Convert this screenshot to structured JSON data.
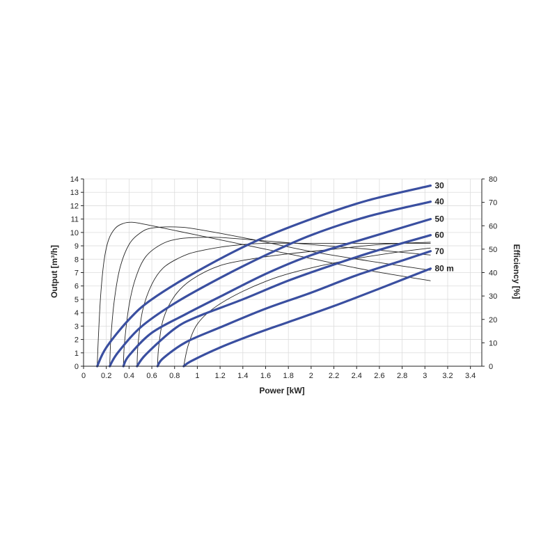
{
  "chart_data": {
    "type": "line",
    "xlabel": "Power [kW]",
    "ylabel": "Output [m³/h]",
    "y2label": "Efficiency [%]",
    "xlim": [
      0,
      3.5
    ],
    "ylim": [
      0,
      14
    ],
    "y2lim": [
      0,
      80
    ],
    "xticks": [
      "0",
      "0.2",
      "0.4",
      "0.6",
      "0.8",
      "1",
      "1.2",
      "1.4",
      "1.6",
      "1.8",
      "2",
      "2.2",
      "2.4",
      "2.6",
      "2.8",
      "3",
      "3.2",
      "3.4"
    ],
    "yticks": [
      "0",
      "1",
      "2",
      "3",
      "4",
      "5",
      "6",
      "7",
      "8",
      "9",
      "10",
      "11",
      "12",
      "13",
      "14"
    ],
    "y2ticks": [
      "0",
      "10",
      "20",
      "30",
      "40",
      "50",
      "60",
      "70",
      "80"
    ],
    "grid": true,
    "output_series": [
      {
        "label": "30",
        "x": [
          0.12,
          0.2,
          0.4,
          0.6,
          1.0,
          1.5,
          2.0,
          2.5,
          3.05
        ],
        "values": [
          0,
          1.4,
          3.5,
          5.0,
          7.1,
          9.3,
          11.0,
          12.4,
          13.5
        ]
      },
      {
        "label": "40",
        "x": [
          0.23,
          0.3,
          0.5,
          0.8,
          1.2,
          1.6,
          2.0,
          2.5,
          3.05
        ],
        "values": [
          0,
          1.0,
          2.9,
          4.7,
          6.6,
          8.3,
          9.8,
          11.2,
          12.3
        ]
      },
      {
        "label": "50",
        "x": [
          0.35,
          0.4,
          0.6,
          0.9,
          1.2,
          1.6,
          2.0,
          2.5,
          3.05
        ],
        "values": [
          0,
          0.8,
          2.5,
          3.9,
          5.2,
          6.9,
          8.3,
          9.6,
          11.0
        ]
      },
      {
        "label": "60",
        "x": [
          0.47,
          0.55,
          0.8,
          1.0,
          1.4,
          1.8,
          2.2,
          2.6,
          3.05
        ],
        "values": [
          0,
          0.9,
          2.8,
          3.7,
          5.0,
          6.4,
          7.6,
          8.7,
          9.8
        ]
      },
      {
        "label": "70",
        "x": [
          0.65,
          0.7,
          0.9,
          1.2,
          1.6,
          2.0,
          2.4,
          2.8,
          3.05
        ],
        "values": [
          0,
          0.6,
          1.8,
          2.9,
          4.3,
          5.5,
          6.8,
          7.9,
          8.6
        ]
      },
      {
        "label": "80 m",
        "x": [
          0.88,
          0.95,
          1.2,
          1.5,
          1.8,
          2.2,
          2.6,
          3.05
        ],
        "values": [
          0,
          0.4,
          1.4,
          2.4,
          3.3,
          4.5,
          5.8,
          7.3
        ]
      }
    ],
    "efficiency_series": [
      {
        "x": [
          0.12,
          0.13,
          0.15,
          0.18,
          0.22,
          0.28,
          0.35,
          0.42,
          0.5,
          0.7,
          1.0,
          1.5,
          2.0,
          2.5,
          3.05
        ],
        "values": [
          0,
          12,
          30,
          45,
          54,
          59,
          61,
          61.5,
          61,
          59,
          56,
          51,
          46,
          41,
          36.5
        ]
      },
      {
        "x": [
          0.23,
          0.24,
          0.27,
          0.32,
          0.4,
          0.5,
          0.6,
          0.8,
          1.0,
          1.5,
          2.0,
          2.5,
          3.05
        ],
        "values": [
          0,
          12,
          28,
          42,
          52,
          57,
          59,
          59.5,
          58.5,
          54,
          49,
          45,
          41
        ]
      },
      {
        "x": [
          0.35,
          0.36,
          0.4,
          0.46,
          0.55,
          0.7,
          0.85,
          1.0,
          1.2,
          1.6,
          2.0,
          2.5,
          3.05
        ],
        "values": [
          0,
          10,
          26,
          38,
          47,
          52.5,
          54.5,
          55,
          55,
          53.5,
          52,
          50,
          47.5
        ]
      },
      {
        "x": [
          0.47,
          0.48,
          0.52,
          0.6,
          0.7,
          0.85,
          1.0,
          1.3,
          1.6,
          2.0,
          2.5,
          3.05
        ],
        "values": [
          0,
          10,
          24,
          35,
          42,
          46.5,
          49,
          51.5,
          52.5,
          52.5,
          52.5,
          52.5
        ]
      },
      {
        "x": [
          0.65,
          0.66,
          0.7,
          0.8,
          0.95,
          1.2,
          1.5,
          1.8,
          2.2,
          2.6,
          3.05
        ],
        "values": [
          0,
          8,
          20,
          30,
          37,
          43,
          46,
          48,
          50,
          52,
          53
        ]
      },
      {
        "x": [
          0.88,
          0.92,
          1.0,
          1.15,
          1.4,
          1.7,
          2.0,
          2.4,
          2.8,
          3.05
        ],
        "values": [
          0,
          9,
          18,
          25,
          32,
          38,
          42,
          46,
          49,
          50.5
        ]
      }
    ]
  }
}
